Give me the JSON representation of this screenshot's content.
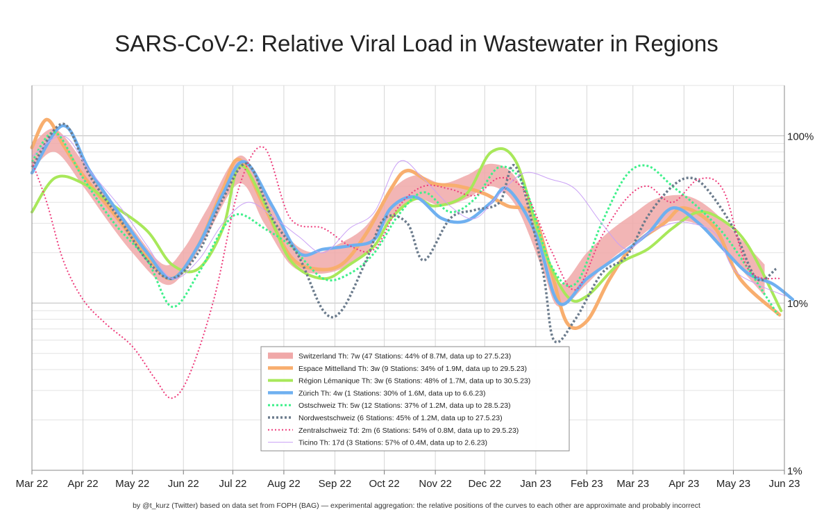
{
  "chart_data": {
    "type": "line",
    "title": "SARS-CoV-2: Relative Viral Load in Wastewater in Regions",
    "footnote": "by @t_kurz (Twitter) based on data set from FOPH (BAG) — experimental aggregation: the relative positions of the curves to each other are approximate and probably incorrect",
    "x_ticks": [
      "Mar 22",
      "Apr 22",
      "May 22",
      "Jun 22",
      "Jul 22",
      "Aug 22",
      "Sep 22",
      "Oct 22",
      "Nov 22",
      "Dec 22",
      "Jan 23",
      "Feb 23",
      "Mar 23",
      "Apr 23",
      "May 23",
      "Jun 23"
    ],
    "y_scale": "log",
    "ylim": [
      1,
      200
    ],
    "y_ticks": [
      {
        "value": 100,
        "label": "100%"
      },
      {
        "value": 10,
        "label": "10%"
      },
      {
        "value": 1,
        "label": "1%"
      }
    ],
    "grid": true,
    "legend_position": "bottom-center",
    "series": [
      {
        "name": "Switzerland",
        "legend_text": "Switzerland  Th: 7w  (47 Stations: 44% of 8.7M, data up to 27.5.23)",
        "color": "#f0a8a8",
        "style": "band",
        "x": [
          "2022-03-01",
          "2022-03-15",
          "2022-04-01",
          "2022-04-15",
          "2022-05-01",
          "2022-05-20",
          "2022-06-01",
          "2022-06-15",
          "2022-07-05",
          "2022-07-20",
          "2022-08-05",
          "2022-08-20",
          "2022-09-05",
          "2022-09-20",
          "2022-10-05",
          "2022-10-20",
          "2022-11-05",
          "2022-11-20",
          "2022-12-05",
          "2022-12-20",
          "2023-01-05",
          "2023-01-15",
          "2023-02-01",
          "2023-02-15",
          "2023-03-01",
          "2023-03-15",
          "2023-04-01",
          "2023-04-15",
          "2023-05-01",
          "2023-05-20"
        ],
        "y": [
          75,
          95,
          60,
          38,
          24,
          15,
          18,
          30,
          65,
          38,
          20,
          17,
          19,
          24,
          40,
          50,
          45,
          50,
          60,
          48,
          20,
          11,
          16,
          22,
          28,
          35,
          37,
          32,
          22,
          14
        ],
        "y_low": [
          62,
          80,
          50,
          32,
          20,
          13,
          15,
          25,
          52,
          30,
          17,
          15,
          16,
          20,
          33,
          42,
          38,
          42,
          50,
          38,
          16,
          9.5,
          13,
          18,
          23,
          29,
          31,
          27,
          18,
          11
        ],
        "y_high": [
          88,
          110,
          70,
          45,
          28,
          17,
          21,
          36,
          76,
          45,
          24,
          20,
          23,
          29,
          47,
          58,
          52,
          58,
          68,
          56,
          25,
          13,
          20,
          27,
          34,
          42,
          44,
          38,
          27,
          17
        ]
      },
      {
        "name": "Espace Mittelland",
        "legend_text": "Espace Mittelland  Th: 3w  (9 Stations: 34% of 1.9M, data up to 29.5.23)",
        "color": "#f8ae6e",
        "style": "solid",
        "width": 5,
        "x": [
          "2022-03-01",
          "2022-03-10",
          "2022-03-20",
          "2022-04-01",
          "2022-04-20",
          "2022-05-10",
          "2022-05-25",
          "2022-06-10",
          "2022-06-25",
          "2022-07-05",
          "2022-07-20",
          "2022-08-05",
          "2022-08-20",
          "2022-09-05",
          "2022-09-20",
          "2022-10-05",
          "2022-10-15",
          "2022-10-30",
          "2022-11-15",
          "2022-12-01",
          "2022-12-15",
          "2022-12-30",
          "2023-01-10",
          "2023-01-20",
          "2023-02-01",
          "2023-02-15",
          "2023-03-01",
          "2023-03-20",
          "2023-04-01",
          "2023-04-20",
          "2023-05-05",
          "2023-05-29"
        ],
        "y": [
          85,
          125,
          88,
          58,
          34,
          19,
          14,
          22,
          48,
          72,
          38,
          19,
          16,
          17,
          26,
          48,
          62,
          52,
          50,
          45,
          38,
          34,
          16,
          7.6,
          7.8,
          14,
          22,
          30,
          37,
          28,
          14,
          8.5
        ]
      },
      {
        "name": "Région Lémanique",
        "legend_text": "Région Lémanique  Th: 3w  (6 Stations: 48% of 1.7M, data up to 30.5.23)",
        "color": "#a8e85a",
        "style": "solid",
        "width": 4,
        "x": [
          "2022-03-01",
          "2022-03-15",
          "2022-04-01",
          "2022-04-20",
          "2022-05-10",
          "2022-05-25",
          "2022-06-10",
          "2022-06-25",
          "2022-07-05",
          "2022-07-20",
          "2022-08-05",
          "2022-08-25",
          "2022-09-10",
          "2022-09-25",
          "2022-10-05",
          "2022-10-20",
          "2022-11-01",
          "2022-11-20",
          "2022-12-05",
          "2022-12-20",
          "2023-01-05",
          "2023-01-20",
          "2023-02-01",
          "2023-02-20",
          "2023-03-10",
          "2023-03-25",
          "2023-04-10",
          "2023-04-25",
          "2023-05-10",
          "2023-05-30"
        ],
        "y": [
          35,
          56,
          52,
          38,
          27,
          17,
          16,
          28,
          66,
          40,
          18,
          14,
          17,
          22,
          32,
          42,
          38,
          45,
          80,
          70,
          22,
          11,
          11,
          17,
          21,
          28,
          35,
          31,
          22,
          9
        ]
      },
      {
        "name": "Zürich",
        "legend_text": "Zürich  Th: 4w  (1 Stations: 30% of 1.6M, data up to 6.6.23)",
        "color": "#6fb0f0",
        "style": "solid",
        "width": 4.5,
        "x": [
          "2022-03-01",
          "2022-03-20",
          "2022-04-05",
          "2022-04-25",
          "2022-05-10",
          "2022-05-25",
          "2022-06-10",
          "2022-06-25",
          "2022-07-08",
          "2022-07-25",
          "2022-08-10",
          "2022-08-25",
          "2022-09-10",
          "2022-09-25",
          "2022-10-05",
          "2022-10-20",
          "2022-11-05",
          "2022-11-20",
          "2022-12-05",
          "2022-12-15",
          "2023-01-01",
          "2023-01-15",
          "2023-02-01",
          "2023-02-20",
          "2023-03-10",
          "2023-03-25",
          "2023-04-10",
          "2023-04-25",
          "2023-05-10",
          "2023-05-25",
          "2023-06-06"
        ],
        "y": [
          60,
          115,
          62,
          32,
          20,
          14,
          22,
          45,
          70,
          38,
          20,
          21,
          22,
          24,
          37,
          43,
          32,
          31,
          40,
          48,
          26,
          10,
          14,
          19,
          26,
          37,
          30,
          21,
          15,
          13,
          10.5
        ]
      },
      {
        "name": "Ostschweiz",
        "legend_text": "Ostschweiz  Th: 5w  (12 Stations: 37% of 1.2M, data up to 28.5.23)",
        "color": "#3ef08a",
        "style": "dotted",
        "width": 3,
        "x": [
          "2022-03-01",
          "2022-03-15",
          "2022-04-01",
          "2022-04-20",
          "2022-05-10",
          "2022-05-25",
          "2022-06-10",
          "2022-06-25",
          "2022-07-05",
          "2022-07-20",
          "2022-08-05",
          "2022-08-25",
          "2022-09-10",
          "2022-09-25",
          "2022-10-10",
          "2022-10-25",
          "2022-11-10",
          "2022-11-25",
          "2022-12-10",
          "2022-12-25",
          "2023-01-10",
          "2023-01-25",
          "2023-02-10",
          "2023-02-25",
          "2023-03-10",
          "2023-03-25",
          "2023-04-10",
          "2023-04-25",
          "2023-05-10",
          "2023-05-28"
        ],
        "y": [
          70,
          105,
          56,
          30,
          18,
          9.5,
          15,
          28,
          34,
          28,
          22,
          14,
          15,
          20,
          34,
          46,
          35,
          42,
          65,
          50,
          17,
          13,
          30,
          58,
          66,
          50,
          37,
          26,
          16,
          8.5
        ]
      },
      {
        "name": "Nordwestschweiz",
        "legend_text": "Nordwestschweiz  (6 Stations: 45% of 1.2M, data up to 27.5.23)",
        "color": "#6b7b8c",
        "style": "dotted",
        "width": 3.5,
        "x": [
          "2022-03-01",
          "2022-03-20",
          "2022-04-05",
          "2022-04-25",
          "2022-05-10",
          "2022-05-25",
          "2022-06-10",
          "2022-06-25",
          "2022-07-10",
          "2022-07-25",
          "2022-08-10",
          "2022-08-25",
          "2022-09-05",
          "2022-09-20",
          "2022-10-01",
          "2022-10-15",
          "2022-10-25",
          "2022-11-10",
          "2022-11-25",
          "2022-12-10",
          "2022-12-20",
          "2023-01-05",
          "2023-01-12",
          "2023-01-25",
          "2023-02-10",
          "2023-02-25",
          "2023-03-10",
          "2023-03-25",
          "2023-04-05",
          "2023-04-15",
          "2023-05-01",
          "2023-05-15",
          "2023-05-27"
        ],
        "y": [
          65,
          118,
          58,
          30,
          18,
          14,
          20,
          42,
          68,
          32,
          19,
          9,
          9,
          18,
          32,
          30,
          18,
          32,
          36,
          40,
          65,
          16,
          6,
          8,
          15,
          19,
          33,
          50,
          56,
          48,
          28,
          14,
          16
        ]
      },
      {
        "name": "Zentralschweiz",
        "legend_text": "Zentralschweiz  Td: 2m  (6 Stations: 54% of 0.8M, data up to 29.5.23)",
        "color": "#ee3a7a",
        "style": "dotted",
        "width": 2,
        "x": [
          "2022-03-01",
          "2022-03-10",
          "2022-03-20",
          "2022-04-01",
          "2022-04-15",
          "2022-05-01",
          "2022-05-15",
          "2022-05-25",
          "2022-06-05",
          "2022-06-20",
          "2022-07-05",
          "2022-07-20",
          "2022-08-05",
          "2022-08-25",
          "2022-09-10",
          "2022-09-25",
          "2022-10-10",
          "2022-10-25",
          "2022-11-10",
          "2022-11-25",
          "2022-12-10",
          "2022-12-25",
          "2023-01-10",
          "2023-01-25",
          "2023-02-10",
          "2023-02-25",
          "2023-03-10",
          "2023-03-25",
          "2023-04-10",
          "2023-04-25",
          "2023-05-10",
          "2023-05-29"
        ],
        "y": [
          70,
          40,
          18,
          10.5,
          7.5,
          5.5,
          3.5,
          2.7,
          3.8,
          11,
          50,
          85,
          32,
          28,
          22,
          21,
          38,
          50,
          48,
          44,
          56,
          47,
          21,
          12,
          25,
          42,
          50,
          40,
          55,
          47,
          16,
          14
        ]
      },
      {
        "name": "Ticino",
        "legend_text": "Ticino  Th: 17d  (3 Stations: 57% of 0.4M, data up to 2.6.23)",
        "color": "#c9a0f5",
        "style": "solid",
        "width": 1,
        "x": [
          "2022-03-01",
          "2022-03-20",
          "2022-04-05",
          "2022-04-25",
          "2022-05-10",
          "2022-05-25",
          "2022-06-10",
          "2022-06-25",
          "2022-07-10",
          "2022-07-25",
          "2022-08-10",
          "2022-08-25",
          "2022-09-10",
          "2022-09-25",
          "2022-10-10",
          "2022-10-25",
          "2022-11-10",
          "2022-11-25",
          "2022-12-10",
          "2022-12-25",
          "2023-01-10",
          "2023-01-25",
          "2023-02-10",
          "2023-02-25",
          "2023-03-10",
          "2023-03-25",
          "2023-04-05",
          "2023-04-20",
          "2023-05-01",
          "2023-05-15",
          "2023-06-02"
        ],
        "y": [
          75,
          100,
          62,
          36,
          22,
          14,
          18,
          30,
          40,
          33,
          25,
          20,
          28,
          35,
          70,
          55,
          38,
          32,
          45,
          60,
          55,
          48,
          30,
          21,
          26,
          30,
          30,
          26,
          16,
          13,
          11
        ]
      }
    ]
  }
}
